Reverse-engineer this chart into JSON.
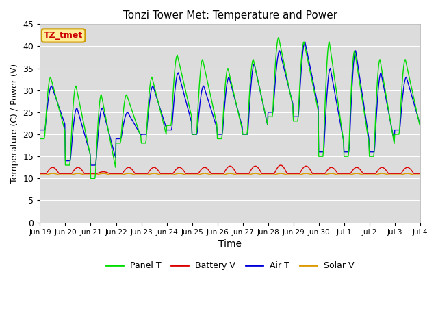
{
  "title": "Tonzi Tower Met: Temperature and Power",
  "xlabel": "Time",
  "ylabel": "Temperature (C) / Power (V)",
  "ylim": [
    0,
    45
  ],
  "yticks": [
    0,
    5,
    10,
    15,
    20,
    25,
    30,
    35,
    40,
    45
  ],
  "colors": {
    "panel_t": "#00dd00",
    "battery_v": "#dd0000",
    "air_t": "#0000dd",
    "solar_v": "#dd9900"
  },
  "legend_label": "TZ_tmet",
  "x_tick_labels": [
    "Jun 19",
    "Jun 20",
    "Jun 21",
    "Jun 22",
    "Jun 23",
    "Jun 24",
    "Jun 25",
    "Jun 26",
    "Jun 27",
    "Jun 28",
    "Jun 29",
    "Jun 30",
    "Jul 1",
    "Jul 2",
    "Jul 3",
    "Jul 4"
  ],
  "n_days": 15,
  "pts_per_day": 48,
  "panel_t_peaks": [
    33,
    31,
    29,
    29,
    33,
    38,
    37,
    35,
    37,
    42,
    41,
    41,
    39,
    37,
    37
  ],
  "panel_t_mins": [
    19,
    13,
    10,
    18,
    18,
    22,
    20,
    19,
    20,
    24,
    23,
    15,
    15,
    15,
    20
  ],
  "air_t_peaks": [
    31,
    26,
    26,
    25,
    31,
    34,
    31,
    33,
    36,
    39,
    41,
    35,
    39,
    34,
    33
  ],
  "air_t_mins": [
    21,
    14,
    13,
    19,
    20,
    21,
    20,
    20,
    20,
    25,
    24,
    16,
    16,
    16,
    21
  ],
  "battery_v_peaks": [
    12.5,
    12.5,
    11.5,
    12.5,
    12.5,
    12.5,
    12.5,
    12.8,
    12.8,
    13.0,
    12.8,
    12.5,
    12.5,
    12.5,
    12.5
  ],
  "battery_v_base": 11.1,
  "solar_v_base": 10.8
}
